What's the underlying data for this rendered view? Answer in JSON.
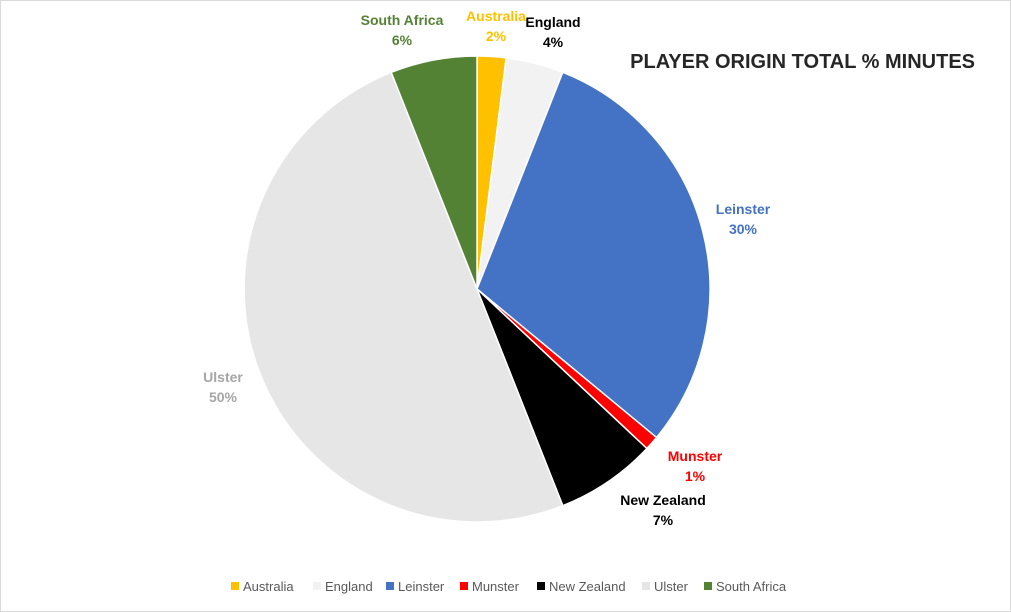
{
  "chart_data": {
    "type": "pie",
    "title": "PLAYER ORIGIN TOTAL % MINUTES",
    "start_angle_deg": 0,
    "direction": "clockwise",
    "legend_position": "bottom",
    "slices": [
      {
        "name": "Australia",
        "value": 2,
        "label": "2%",
        "color": "#FFC000",
        "label_color": "#FFC000"
      },
      {
        "name": "England",
        "value": 4,
        "label": "4%",
        "color": "#F2F2F2",
        "label_color": "#000000"
      },
      {
        "name": "Leinster",
        "value": 30,
        "label": "30%",
        "color": "#4472C4",
        "label_color": "#4472C4"
      },
      {
        "name": "Munster",
        "value": 1,
        "label": "1%",
        "color": "#FF0000",
        "label_color": "#FF0000"
      },
      {
        "name": "New Zealand",
        "value": 7,
        "label": "7%",
        "color": "#000000",
        "label_color": "#000000"
      },
      {
        "name": "Ulster",
        "value": 50,
        "label": "50%",
        "color": "#E7E6E6",
        "label_color": "#A6A6A6"
      },
      {
        "name": "South Africa",
        "value": 6,
        "label": "6%",
        "color": "#548235",
        "label_color": "#548235"
      }
    ]
  }
}
